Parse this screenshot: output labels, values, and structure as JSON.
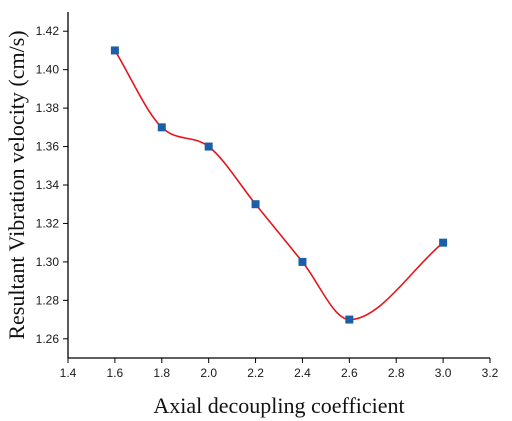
{
  "chart_data": {
    "type": "line",
    "title": "",
    "xlabel": "Axial decoupling coefficient",
    "ylabel": "Resultant Vibration velocity (cm/s)",
    "xlim": [
      1.4,
      3.2
    ],
    "ylim": [
      1.25,
      1.43
    ],
    "x_ticks": [
      "1.4",
      "1.6",
      "1.8",
      "2.0",
      "2.2",
      "2.4",
      "2.6",
      "2.8",
      "3.0",
      "3.2"
    ],
    "y_ticks": [
      "1.26",
      "1.28",
      "1.30",
      "1.32",
      "1.34",
      "1.36",
      "1.38",
      "1.40",
      "1.42"
    ],
    "grid": false,
    "legend": "none",
    "series": [
      {
        "x": [
          1.6,
          1.8,
          2.0,
          2.2,
          2.4,
          2.6,
          3.0
        ],
        "y": [
          1.41,
          1.37,
          1.36,
          1.33,
          1.3,
          1.27,
          1.31
        ],
        "line_color": "#e8141c",
        "marker_color": "#1c5fa8",
        "marker": "square",
        "smooth": true
      }
    ]
  }
}
